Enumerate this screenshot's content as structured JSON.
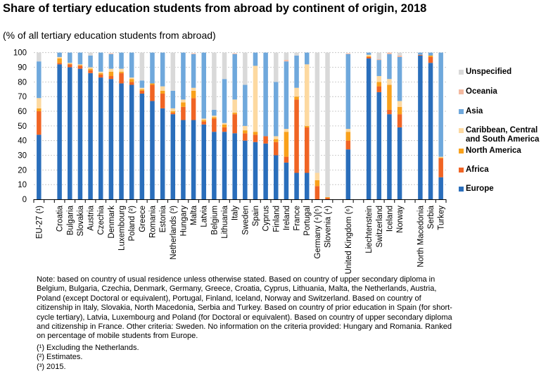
{
  "title": "Share of tertiary education students from abroad by continent of origin, 2018",
  "subtitle": "(% of all tertiary education students from abroad)",
  "chart_data": {
    "type": "bar",
    "stacked": true,
    "title": "Share of tertiary education students from abroad by continent of origin, 2018",
    "ylabel": "% of all tertiary education students from abroad",
    "ylim": [
      0,
      100
    ],
    "yticks": [
      0,
      10,
      20,
      30,
      40,
      50,
      60,
      70,
      80,
      90,
      100
    ],
    "grid": true,
    "legend_position": "right",
    "categories": [
      "EU-27 (¹)",
      "",
      "Croatia",
      "Bulgaria",
      "Slovakia",
      "Austria",
      "Czechia",
      "Denmark",
      "Luxembourg",
      "Poland (²)",
      "Greece",
      "Romania",
      "Estonia",
      "Netherlands (³)",
      "Hungary",
      "Malta",
      "Latvia",
      "Belgium",
      "Lithuania",
      "Italy",
      "Sweden",
      "Spain",
      "Cyprus",
      "Finland",
      "Ireland",
      "France",
      "Portugal",
      "Germany (⁴)(⁵)",
      "Slovenia (⁴)",
      "",
      "United Kingdom (⁶)",
      "",
      "Liechtenstein",
      "Switzerland",
      "Iceland",
      "Norway",
      "",
      "North Macedonia",
      "Serbia",
      "Turkey"
    ],
    "series": [
      {
        "name": "Europe",
        "color": "#2a6ebb",
        "values": [
          44,
          null,
          92,
          90,
          89,
          86,
          83,
          82,
          79,
          78,
          72,
          67,
          62,
          58,
          54,
          54,
          51,
          46,
          46,
          45,
          40,
          39,
          38,
          30,
          25,
          18,
          18,
          0,
          0,
          null,
          34,
          null,
          96,
          73,
          58,
          49,
          null,
          98,
          93,
          15
        ]
      },
      {
        "name": "Africa",
        "color": "#f06424",
        "values": [
          16,
          null,
          1,
          2,
          2,
          2,
          2,
          2,
          7,
          2,
          2,
          11,
          10,
          1,
          9,
          15,
          2,
          9,
          3,
          13,
          5,
          5,
          5,
          9,
          4,
          50,
          31,
          9,
          1,
          null,
          6,
          null,
          1,
          4,
          3,
          9,
          null,
          0.5,
          4,
          13
        ]
      },
      {
        "name": "North America",
        "color": "#f9a11b",
        "values": [
          2,
          null,
          3,
          0.5,
          0.5,
          1,
          1,
          3,
          1,
          2,
          1,
          1,
          2,
          1,
          3,
          5,
          1,
          1,
          2,
          1,
          2,
          2,
          0,
          2,
          17,
          2,
          1,
          4,
          0.5,
          null,
          6,
          null,
          0.5,
          3,
          17,
          5,
          null,
          0,
          1,
          0.5
        ]
      },
      {
        "name": "Caribbean, Central and South America",
        "color": "#fdd9a0",
        "values": [
          7,
          null,
          1,
          0.5,
          0.5,
          1,
          1,
          2,
          2,
          1,
          1,
          0,
          3,
          2,
          2,
          2,
          1,
          1,
          1,
          9,
          3,
          45,
          0,
          2,
          2,
          6,
          42,
          5,
          0,
          null,
          2,
          null,
          1,
          4,
          4,
          4,
          null,
          0,
          0,
          0.5
        ]
      },
      {
        "name": "Asia",
        "color": "#6fa8dc",
        "values": [
          25,
          null,
          3,
          7,
          8,
          8,
          13,
          10,
          11,
          17,
          5,
          21,
          23,
          12,
          32,
          23,
          45,
          4,
          30,
          31,
          28,
          9,
          57,
          37,
          46,
          22,
          8,
          0,
          0,
          null,
          51,
          null,
          2,
          11,
          17,
          30,
          null,
          1.5,
          2,
          71
        ]
      },
      {
        "name": "Oceania",
        "color": "#f4b9a0",
        "values": [
          0,
          null,
          0,
          0,
          0,
          0,
          0,
          0.5,
          0,
          0,
          0,
          0,
          0,
          0,
          0,
          0.5,
          0,
          0,
          0,
          0.5,
          0,
          0,
          0,
          0,
          1,
          0,
          0,
          0,
          0,
          null,
          0.5,
          null,
          0,
          0.5,
          1,
          1,
          null,
          0,
          0,
          0
        ]
      },
      {
        "name": "Unspecified",
        "color": "#d9d9d9",
        "values": [
          6,
          null,
          0,
          0,
          0,
          2,
          0,
          0,
          0,
          0,
          19,
          0,
          0,
          26,
          0,
          0,
          0,
          39,
          18,
          0,
          22,
          0,
          0,
          20,
          5,
          2,
          0,
          82,
          98.5,
          null,
          0,
          null,
          0,
          4.5,
          0,
          2,
          null,
          0,
          0,
          0
        ]
      }
    ]
  },
  "legend": {
    "items": [
      {
        "label": "Unspecified",
        "color": "#d9d9d9"
      },
      {
        "label": "Oceania",
        "color": "#f4b9a0"
      },
      {
        "label": "Asia",
        "color": "#6fa8dc"
      },
      {
        "label": "Caribbean, Central and South America",
        "color": "#fdd9a0"
      },
      {
        "label": "North America",
        "color": "#f9a11b"
      },
      {
        "label": "Africa",
        "color": "#f06424"
      },
      {
        "label": "Europe",
        "color": "#2a6ebb"
      }
    ]
  },
  "notes": {
    "main": "Note: based on country of usual residence unless otherwise stated. Based on country of upper secondary diploma in Belgium, Bulgaria, Czechia, Denmark, Germany, Greece, Croatia, Cyprus, Lithuania, Malta, the Netherlands, Austria, Poland (except Doctoral or equivalent), Portugal, Finland, Iceland, Norway and Switzerland. Based on country of citizenship in Italy, Slovakia, North Macedonia, Serbia and Turkey. Based on country of prior education in Spain (for short-cycle tertiary), Latvia, Luxembourg and Poland (for Doctoral or equivalent). Based on country of upper secondary diploma and citizenship in France. Other criteria: Sweden. No information on the criteria provided: Hungary and Romania. Ranked on percentage of mobile students from Europe.",
    "footnotes": [
      "(¹) Excluding the Netherlands.",
      "(²) Estimates.",
      "(³) 2015."
    ]
  }
}
